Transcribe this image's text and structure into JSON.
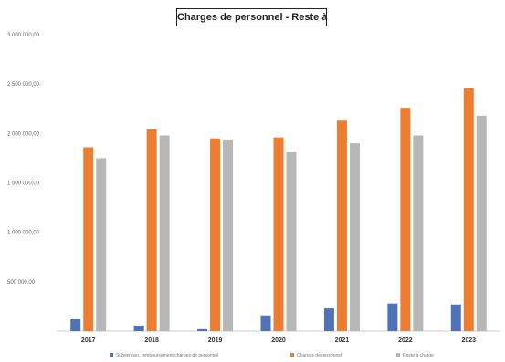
{
  "chart_data": {
    "type": "bar",
    "title": "Charges de personnel - Reste à charge",
    "categories": [
      "2017",
      "2018",
      "2019",
      "2020",
      "2021",
      "2022",
      "2023"
    ],
    "y_tick_labels": [
      "",
      "500 000,00",
      "1 000 000,00",
      "1 500 000,00",
      "2 000 000,00",
      "2 500 000,00",
      "3 000 000,00"
    ],
    "ylim": [
      0,
      3000000
    ],
    "grid": false,
    "legend_position": "bottom",
    "series": [
      {
        "name": "Subvention, remboursement charges de personnel",
        "color": "#4f72b8",
        "values": [
          120000,
          55000,
          20000,
          150000,
          230000,
          280000,
          270000
        ]
      },
      {
        "name": "Charges de personnel",
        "color": "#ed7d31",
        "values": [
          1860000,
          2040000,
          1950000,
          1960000,
          2130000,
          2260000,
          2460000
        ]
      },
      {
        "name": "Reste à charge",
        "color": "#b7b7b7",
        "values": [
          1750000,
          1980000,
          1930000,
          1810000,
          1900000,
          1980000,
          2180000
        ]
      }
    ]
  }
}
